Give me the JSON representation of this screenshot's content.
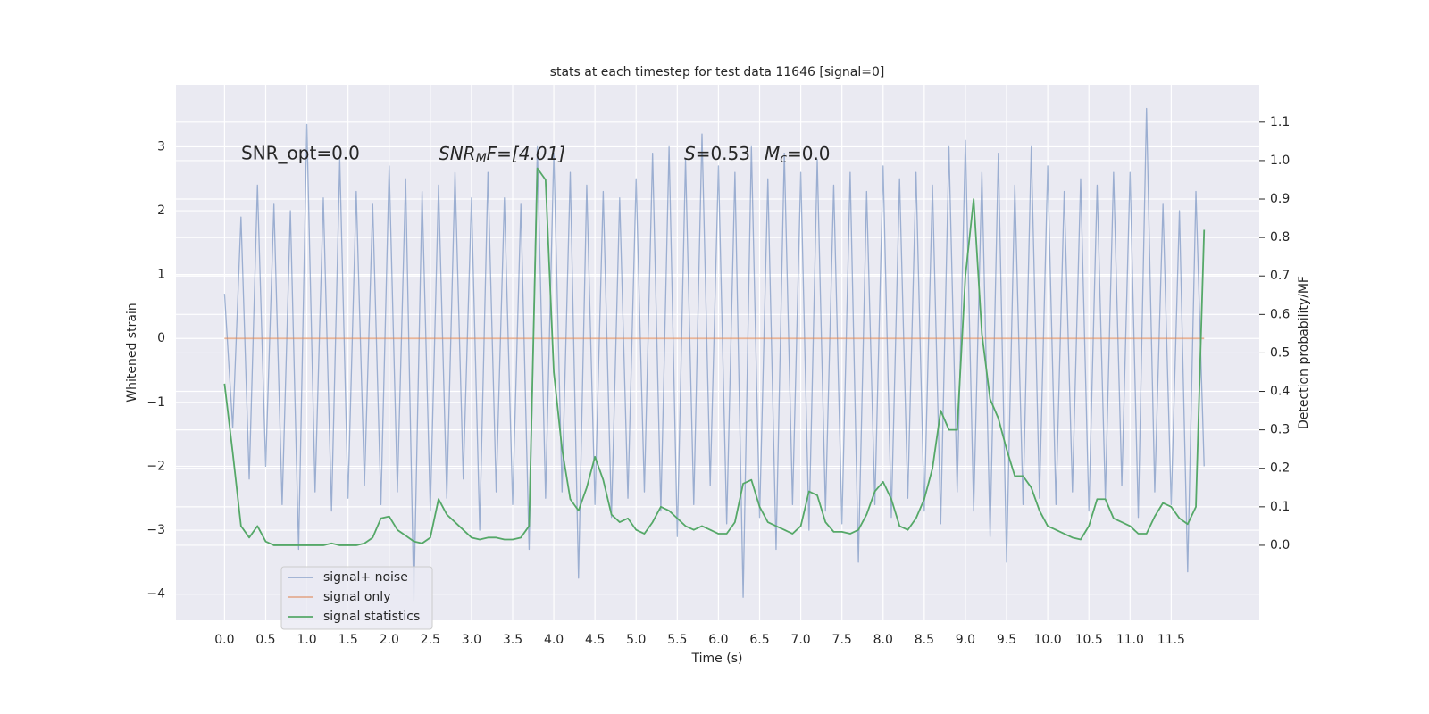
{
  "chart_data": {
    "type": "line",
    "title": "stats at each timestep for test data 11646 [signal=0]",
    "xlabel": "Time (s)",
    "ylabel": "Whitened strain",
    "y2label": "Detection probability/MF",
    "annotations": [
      [
        "SNR_opt=0.0"
      ],
      [
        "SNR",
        "M",
        "F=[4.01]"
      ],
      [
        "S",
        "=0.53",
        "M",
        "c",
        "=0.0"
      ]
    ],
    "x": [
      0,
      0.1,
      0.2,
      0.3,
      0.4,
      0.5,
      0.6,
      0.7,
      0.8,
      0.9,
      1,
      1.1,
      1.2,
      1.3,
      1.4,
      1.5,
      1.6,
      1.7,
      1.8,
      1.9,
      2,
      2.1,
      2.2,
      2.3,
      2.4,
      2.5,
      2.6,
      2.7,
      2.8,
      2.9,
      3,
      3.1,
      3.2,
      3.3,
      3.4,
      3.5,
      3.6,
      3.7,
      3.8,
      3.9,
      4,
      4.1,
      4.2,
      4.3,
      4.4,
      4.5,
      4.6,
      4.7,
      4.8,
      4.9,
      5,
      5.1,
      5.2,
      5.3,
      5.4,
      5.5,
      5.6,
      5.7,
      5.8,
      5.9,
      6,
      6.1,
      6.2,
      6.3,
      6.4,
      6.5,
      6.6,
      6.7,
      6.8,
      6.9,
      7,
      7.1,
      7.2,
      7.3,
      7.4,
      7.5,
      7.6,
      7.7,
      7.8,
      7.9,
      8,
      8.1,
      8.2,
      8.3,
      8.4,
      8.5,
      8.6,
      8.7,
      8.8,
      8.9,
      9,
      9.1,
      9.2,
      9.3,
      9.4,
      9.5,
      9.6,
      9.7,
      9.8,
      9.9,
      10,
      10.1,
      10.2,
      10.3,
      10.4,
      10.5,
      10.6,
      10.7,
      10.8,
      10.9,
      11,
      11.1,
      11.2,
      11.3,
      11.4,
      11.5,
      11.6,
      11.7,
      11.8,
      11.9
    ],
    "series": [
      {
        "name": "signal+ noise",
        "color": "#4c72b0",
        "alpha": 0.5,
        "values": [
          0.7,
          -1.4,
          1.9,
          -2.2,
          2.4,
          -2.0,
          2.1,
          -2.6,
          2.0,
          -3.3,
          3.35,
          -2.4,
          2.2,
          -2.7,
          2.8,
          -2.5,
          2.3,
          -2.3,
          2.1,
          -2.6,
          2.7,
          -2.4,
          2.5,
          -4.1,
          2.3,
          -2.7,
          2.4,
          -2.5,
          2.6,
          -2.2,
          2.2,
          -3.0,
          2.6,
          -2.4,
          2.2,
          -2.6,
          2.1,
          -3.3,
          3.0,
          -2.5,
          2.9,
          -2.4,
          2.6,
          -3.75,
          2.4,
          -2.6,
          2.3,
          -2.8,
          2.2,
          -2.5,
          2.5,
          -2.4,
          2.9,
          -2.7,
          3.0,
          -3.1,
          2.8,
          -2.6,
          3.2,
          -2.3,
          2.7,
          -2.9,
          2.6,
          -4.05,
          3.0,
          -2.8,
          2.5,
          -3.3,
          2.9,
          -2.6,
          2.6,
          -3.0,
          2.8,
          -2.7,
          2.4,
          -2.9,
          2.6,
          -3.5,
          2.3,
          -2.6,
          2.7,
          -2.8,
          2.5,
          -2.5,
          2.6,
          -2.7,
          2.4,
          -2.9,
          3.0,
          -2.4,
          3.1,
          -2.7,
          2.6,
          -3.1,
          2.9,
          -3.5,
          2.4,
          -2.6,
          3.0,
          -2.5,
          2.7,
          -2.6,
          2.3,
          -2.4,
          2.5,
          -2.7,
          2.4,
          -2.5,
          2.6,
          -2.3,
          2.6,
          -2.8,
          3.6,
          -2.4,
          2.1,
          -2.6,
          2.0,
          -3.65,
          2.3,
          -2.0
        ]
      },
      {
        "name": "signal only",
        "color": "#dd8452",
        "alpha": 0.6,
        "values": [
          0,
          0,
          0,
          0,
          0,
          0,
          0,
          0,
          0,
          0,
          0,
          0,
          0,
          0,
          0,
          0,
          0,
          0,
          0,
          0,
          0,
          0,
          0,
          0,
          0,
          0,
          0,
          0,
          0,
          0,
          0,
          0,
          0,
          0,
          0,
          0,
          0,
          0,
          0,
          0,
          0,
          0,
          0,
          0,
          0,
          0,
          0,
          0,
          0,
          0,
          0,
          0,
          0,
          0,
          0,
          0,
          0,
          0,
          0,
          0,
          0,
          0,
          0,
          0,
          0,
          0,
          0,
          0,
          0,
          0,
          0,
          0,
          0,
          0,
          0,
          0,
          0,
          0,
          0,
          0,
          0,
          0,
          0,
          0,
          0,
          0,
          0,
          0,
          0,
          0,
          0,
          0,
          0,
          0,
          0,
          0,
          0,
          0,
          0,
          0,
          0,
          0,
          0,
          0,
          0,
          0,
          0,
          0,
          0,
          0,
          0,
          0,
          0,
          0,
          0,
          0,
          0,
          0,
          0,
          0
        ]
      },
      {
        "name": "signal statistics",
        "color": "#55a868",
        "alpha": 1,
        "axis": "y2",
        "values": [
          0.42,
          0.24,
          0.05,
          0.02,
          0.05,
          0.01,
          0,
          0,
          0,
          0,
          0,
          0,
          0,
          0.005,
          0,
          0,
          0,
          0.005,
          0.02,
          0.07,
          0.075,
          0.04,
          0.025,
          0.01,
          0.005,
          0.02,
          0.12,
          0.08,
          0.06,
          0.04,
          0.02,
          0.015,
          0.02,
          0.02,
          0.015,
          0.015,
          0.02,
          0.05,
          0.98,
          0.95,
          0.45,
          0.25,
          0.12,
          0.09,
          0.15,
          0.23,
          0.17,
          0.08,
          0.06,
          0.07,
          0.04,
          0.03,
          0.06,
          0.1,
          0.09,
          0.07,
          0.05,
          0.04,
          0.05,
          0.04,
          0.03,
          0.03,
          0.06,
          0.16,
          0.17,
          0.1,
          0.06,
          0.05,
          0.04,
          0.03,
          0.05,
          0.14,
          0.13,
          0.06,
          0.035,
          0.035,
          0.03,
          0.04,
          0.08,
          0.14,
          0.165,
          0.12,
          0.05,
          0.04,
          0.07,
          0.12,
          0.2,
          0.35,
          0.3,
          0.3,
          0.7,
          0.9,
          0.55,
          0.38,
          0.33,
          0.25,
          0.18,
          0.18,
          0.15,
          0.09,
          0.05,
          0.04,
          0.03,
          0.02,
          0.015,
          0.05,
          0.12,
          0.12,
          0.07,
          0.06,
          0.05,
          0.03,
          0.03,
          0.075,
          0.11,
          0.1,
          0.07,
          0.055,
          0.1,
          0.82
        ]
      }
    ],
    "xlim": [
      -0.59,
      12.57
    ],
    "xticks": [
      {
        "value": 0,
        "label": "0.0"
      },
      0.5,
      {
        "value": 1,
        "label": "1.0"
      },
      1.5,
      {
        "value": 2,
        "label": "2.0"
      },
      2.5,
      {
        "value": 3,
        "label": "3.0"
      },
      3.5,
      {
        "value": 4,
        "label": "4.0"
      },
      4.5,
      {
        "value": 5,
        "label": "5.0"
      },
      5.5,
      {
        "value": 6,
        "label": "6.0"
      },
      6.5,
      {
        "value": 7,
        "label": "7.0"
      },
      7.5,
      {
        "value": 8,
        "label": "8.0"
      },
      8.5,
      {
        "value": 9,
        "label": "9.0"
      },
      9.5,
      {
        "value": 10,
        "label": "10.0"
      },
      10.5,
      {
        "value": 11,
        "label": "11.0"
      },
      11.5
    ],
    "ylim": [
      -4.41,
      3.97
    ],
    "yticks": [
      {
        "value": -4,
        "label": "−4"
      },
      {
        "value": -3,
        "label": "−3"
      },
      {
        "value": -2,
        "label": "−2"
      },
      {
        "value": -1,
        "label": "−1"
      },
      0,
      1,
      2,
      3
    ],
    "y2lim": [
      -0.195,
      1.197
    ],
    "y2ticks": [
      {
        "value": 0,
        "label": "0.0"
      },
      0.1,
      0.2,
      0.3,
      0.4,
      0.5,
      0.6,
      0.7,
      0.8,
      0.9,
      {
        "value": 1,
        "label": "1.0"
      },
      1.1
    ],
    "grid": true,
    "legend": "lower left"
  }
}
